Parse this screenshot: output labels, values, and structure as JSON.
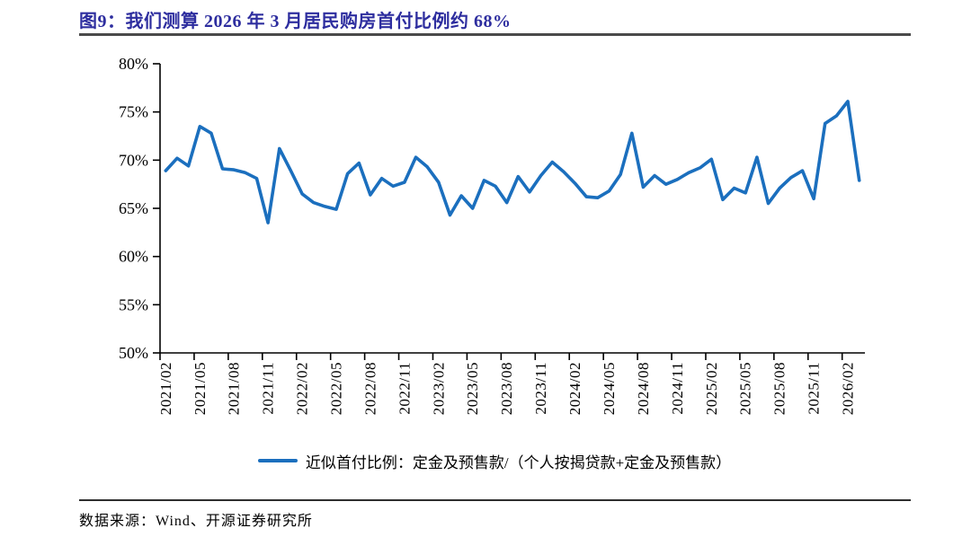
{
  "header": {
    "title": "图9：我们测算 2026 年 3 月居民购房首付比例约 68%"
  },
  "footer": {
    "source": "数据来源：Wind、开源证券研究所"
  },
  "colors": {
    "title": "#2E2E9F",
    "line": "#1B6FBE",
    "axis": "#000000",
    "rule": "#4A4A4A"
  },
  "chart_data": {
    "type": "line",
    "title": "图9：我们测算 2026 年 3 月居民购房首付比例约 68%",
    "legend_label": "近似首付比例：定金及预售款/（个人按揭贷款+定金及预售款）",
    "legend_position": "bottom",
    "grid": false,
    "ylim": [
      50,
      80
    ],
    "y_tick_labels": [
      "80%",
      "75%",
      "70%",
      "65%",
      "60%",
      "55%",
      "50%"
    ],
    "x_tick_labels": [
      "2021/02",
      "2021/05",
      "2021/08",
      "2021/11",
      "2022/02",
      "2022/05",
      "2022/08",
      "2022/11",
      "2023/02",
      "2023/05",
      "2023/08",
      "2023/11",
      "2024/02",
      "2024/05",
      "2024/08",
      "2024/11",
      "2025/02",
      "2025/05",
      "2025/08",
      "2025/11",
      "2026/02"
    ],
    "x": [
      "2021/02",
      "2021/03",
      "2021/04",
      "2021/05",
      "2021/06",
      "2021/07",
      "2021/08",
      "2021/09",
      "2021/10",
      "2021/11",
      "2021/12",
      "2022/01",
      "2022/02",
      "2022/03",
      "2022/04",
      "2022/05",
      "2022/06",
      "2022/07",
      "2022/08",
      "2022/09",
      "2022/10",
      "2022/11",
      "2022/12",
      "2023/01",
      "2023/02",
      "2023/03",
      "2023/04",
      "2023/05",
      "2023/06",
      "2023/07",
      "2023/08",
      "2023/09",
      "2023/10",
      "2023/11",
      "2023/12",
      "2024/01",
      "2024/02",
      "2024/03",
      "2024/04",
      "2024/05",
      "2024/06",
      "2024/07",
      "2024/08",
      "2024/09",
      "2024/10",
      "2024/11",
      "2024/12",
      "2025/01",
      "2025/02",
      "2025/03",
      "2025/04",
      "2025/05",
      "2025/06",
      "2025/07",
      "2025/08",
      "2025/09",
      "2025/10",
      "2025/11",
      "2025/12",
      "2026/01",
      "2026/02",
      "2026/03"
    ],
    "series": [
      {
        "name": "近似首付比例：定金及预售款/（个人按揭贷款+定金及预售款）",
        "values": [
          68.9,
          70.2,
          69.4,
          73.5,
          72.8,
          69.1,
          69.0,
          68.7,
          68.1,
          63.5,
          71.2,
          68.9,
          66.5,
          65.6,
          65.2,
          64.9,
          68.6,
          69.7,
          66.4,
          68.1,
          67.3,
          67.7,
          70.3,
          69.3,
          67.7,
          64.3,
          66.3,
          65.0,
          67.9,
          67.3,
          65.6,
          68.3,
          66.7,
          68.4,
          69.8,
          68.8,
          67.6,
          66.2,
          66.1,
          66.8,
          68.5,
          72.8,
          67.2,
          68.4,
          67.5,
          68.0,
          68.7,
          69.2,
          70.1,
          65.9,
          67.1,
          66.6,
          70.3,
          65.5,
          67.1,
          68.2,
          68.9,
          66.0,
          73.8,
          74.6,
          76.1,
          67.9
        ]
      }
    ]
  }
}
